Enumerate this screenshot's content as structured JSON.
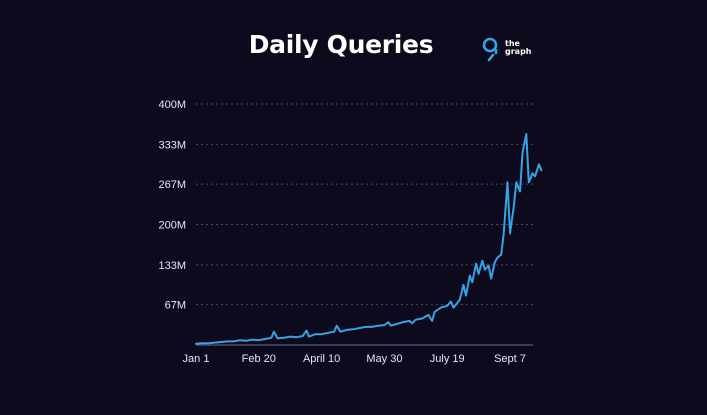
{
  "brand": {
    "name_line1": "the",
    "name_line2": "graph",
    "logo_icon": "the-graph-logo-icon"
  },
  "colors": {
    "background": "#0c0a1c",
    "line": "#36a3e6",
    "grid": "#4b4866",
    "text": "#ffffff"
  },
  "chart_data": {
    "type": "line",
    "title": "Daily Queries",
    "xlabel": "",
    "ylabel": "",
    "grid": true,
    "y_ticks": [
      "400M",
      "333M",
      "267M",
      "200M",
      "133M",
      "67M"
    ],
    "y_tick_values": [
      400,
      333,
      267,
      200,
      133,
      67
    ],
    "x_ticks": [
      "Jan 1",
      "Feb 20",
      "April 10",
      "May 30",
      "July 19",
      "Sept 7"
    ],
    "x_tick_days": [
      0,
      50,
      100,
      150,
      200,
      250
    ],
    "ylim": [
      0,
      400
    ],
    "y_unit": "M",
    "series": [
      {
        "x_days": [
          0,
          5,
          10,
          15,
          20,
          25,
          30,
          35,
          40,
          45,
          50,
          55,
          60,
          62,
          65,
          70,
          75,
          80,
          85,
          88,
          90,
          95,
          100,
          105,
          110,
          112,
          115,
          120,
          125,
          130,
          135,
          140,
          145,
          150,
          153,
          155,
          160,
          165,
          170,
          172,
          175,
          180,
          185,
          188,
          190,
          195,
          200,
          203,
          205,
          210,
          213,
          215,
          218,
          220,
          223,
          225,
          228,
          230,
          233,
          235,
          238,
          240,
          243,
          245,
          248,
          250,
          253,
          255,
          258,
          260,
          263,
          265,
          268,
          270,
          273,
          275
        ],
        "values": [
          2,
          3,
          3,
          4,
          5,
          6,
          6,
          8,
          7,
          9,
          8,
          10,
          12,
          22,
          11,
          12,
          14,
          13,
          15,
          24,
          14,
          18,
          18,
          20,
          22,
          32,
          22,
          25,
          26,
          28,
          30,
          30,
          32,
          33,
          38,
          32,
          35,
          38,
          40,
          36,
          42,
          44,
          50,
          40,
          55,
          62,
          65,
          72,
          62,
          75,
          100,
          82,
          115,
          104,
          135,
          118,
          140,
          125,
          132,
          110,
          138,
          145,
          150,
          185,
          270,
          185,
          230,
          270,
          255,
          320,
          350,
          270,
          285,
          280,
          300,
          290
        ]
      }
    ]
  }
}
